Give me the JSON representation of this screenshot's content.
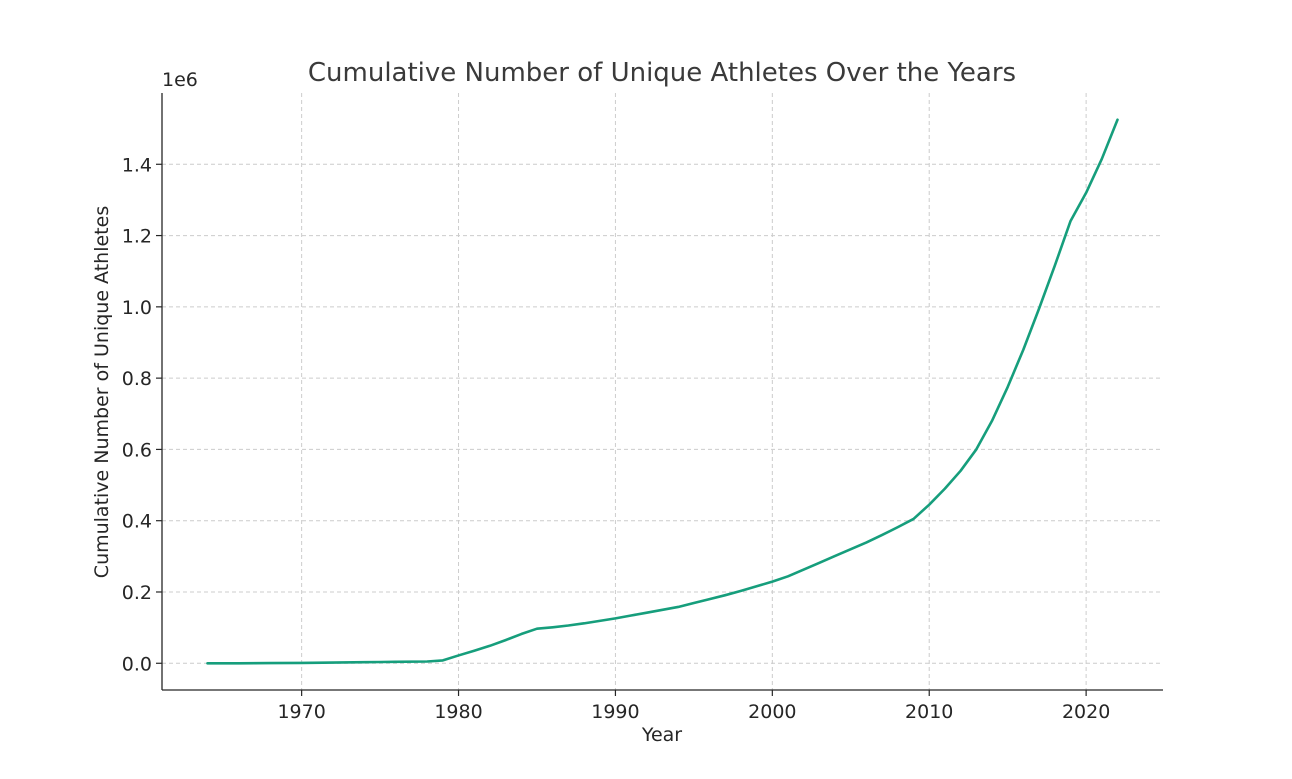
{
  "chart_data": {
    "type": "line",
    "title": "Cumulative Number of Unique Athletes Over the Years",
    "xlabel": "Year",
    "ylabel": "Cumulative Number of Unique Athletes",
    "y_offset_label": "1e6",
    "xlim": [
      1961.1,
      2024.9
    ],
    "ylim": [
      -75000,
      1600000
    ],
    "x_ticks": [
      1970,
      1980,
      1990,
      2000,
      2010,
      2020
    ],
    "x_tick_labels": [
      "1970",
      "1980",
      "1990",
      "2000",
      "2010",
      "2020"
    ],
    "y_ticks": [
      0,
      200000,
      400000,
      600000,
      800000,
      1000000,
      1200000,
      1400000
    ],
    "y_tick_labels": [
      "0.0",
      "0.2",
      "0.4",
      "0.6",
      "0.8",
      "1.0",
      "1.2",
      "1.4"
    ],
    "grid": true,
    "line_color": "#169e7c",
    "series": [
      {
        "name": "Cumulative Unique Athletes",
        "x": [
          1964,
          1966,
          1968,
          1970,
          1972,
          1974,
          1976,
          1978,
          1979,
          1980,
          1981,
          1982,
          1983,
          1984,
          1985,
          1986,
          1987,
          1988,
          1989,
          1990,
          1991,
          1992,
          1993,
          1994,
          1995,
          1996,
          1997,
          1998,
          1999,
          2000,
          2001,
          2002,
          2003,
          2004,
          2005,
          2006,
          2007,
          2008,
          2009,
          2010,
          2011,
          2012,
          2013,
          2014,
          2015,
          2016,
          2017,
          2018,
          2019,
          2020,
          2021,
          2022
        ],
        "y": [
          0,
          0,
          500,
          1000,
          2000,
          3000,
          4000,
          5000,
          8000,
          22000,
          35000,
          49000,
          65000,
          82000,
          97000,
          101000,
          106000,
          112000,
          119000,
          126000,
          134000,
          142000,
          150000,
          158000,
          169000,
          180000,
          191000,
          203000,
          216000,
          229000,
          244000,
          263000,
          282000,
          301000,
          320000,
          339000,
          360000,
          382000,
          405000,
          445000,
          490000,
          540000,
          600000,
          680000,
          775000,
          880000,
          995000,
          1115000,
          1240000,
          1320000,
          1415000,
          1525000
        ]
      }
    ]
  }
}
